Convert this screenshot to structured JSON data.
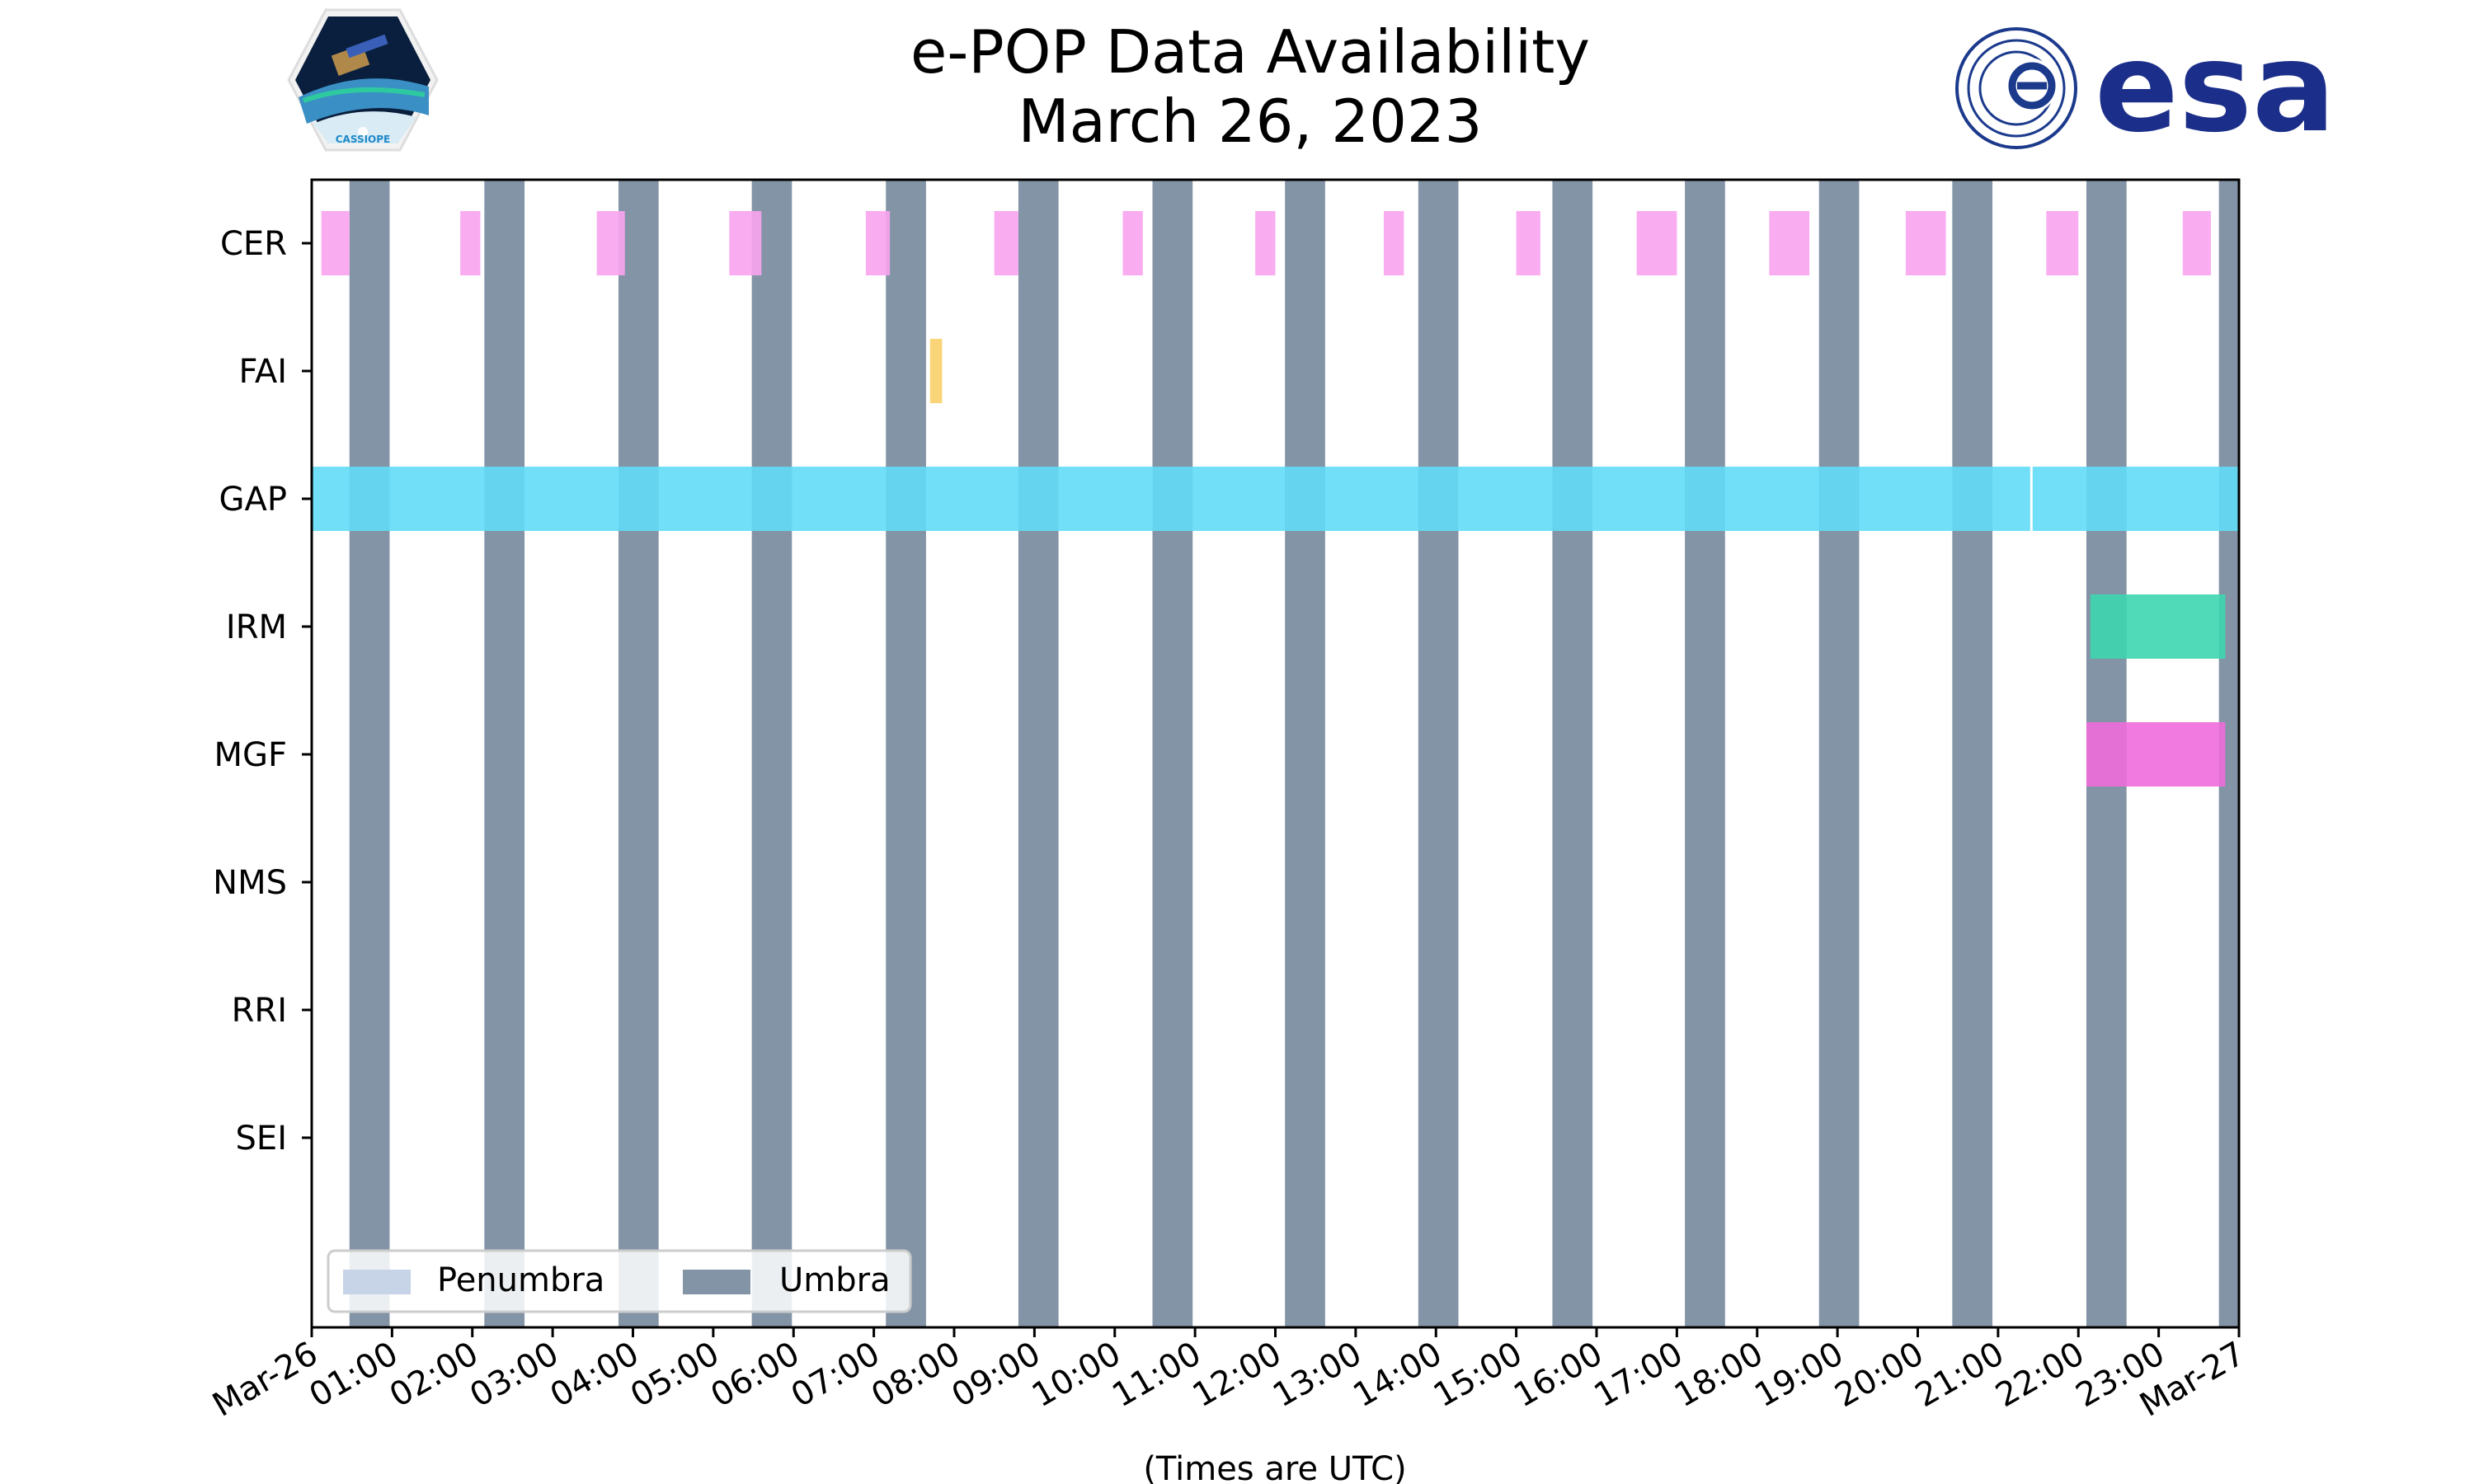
{
  "chart_data": {
    "type": "timeline",
    "title": "e-POP Data Availability",
    "subtitle": "March 26, 2023",
    "xlabel": "(Times are UTC)",
    "xlim_hours": [
      0,
      24
    ],
    "x_tick_labels": [
      "Mar-26",
      "01:00",
      "02:00",
      "03:00",
      "04:00",
      "05:00",
      "06:00",
      "07:00",
      "08:00",
      "09:00",
      "10:00",
      "11:00",
      "12:00",
      "13:00",
      "14:00",
      "15:00",
      "16:00",
      "17:00",
      "18:00",
      "19:00",
      "20:00",
      "21:00",
      "22:00",
      "23:00",
      "Mar-27"
    ],
    "instruments": [
      "CER",
      "FAI",
      "GAP",
      "IRM",
      "MGF",
      "NMS",
      "RRI",
      "SEI"
    ],
    "series": [
      {
        "name": "CER",
        "color": "#f9a3f0",
        "intervals": [
          [
            0.12,
            0.47
          ],
          [
            1.85,
            2.1
          ],
          [
            3.55,
            3.9
          ],
          [
            5.2,
            5.6
          ],
          [
            6.9,
            7.2
          ],
          [
            8.5,
            8.8
          ],
          [
            10.1,
            10.35
          ],
          [
            11.75,
            12.0
          ],
          [
            13.35,
            13.6
          ],
          [
            15.0,
            15.3
          ],
          [
            16.5,
            17.0
          ],
          [
            18.15,
            18.65
          ],
          [
            19.85,
            20.35
          ],
          [
            21.6,
            22.0
          ],
          [
            23.3,
            23.65
          ]
        ]
      },
      {
        "name": "FAI",
        "color": "#f9cf6a",
        "intervals": [
          [
            7.7,
            7.85
          ]
        ]
      },
      {
        "name": "GAP",
        "color": "#62dcf7",
        "intervals": [
          [
            0,
            21.4
          ],
          [
            21.43,
            24
          ]
        ]
      },
      {
        "name": "IRM",
        "color": "#3dd6b0",
        "intervals": [
          [
            22.15,
            23.83
          ]
        ]
      },
      {
        "name": "MGF",
        "color": "#ee6cdb",
        "intervals": [
          [
            22.1,
            23.83
          ]
        ]
      },
      {
        "name": "NMS",
        "color": "#cccccc",
        "intervals": []
      },
      {
        "name": "RRI",
        "color": "#cccccc",
        "intervals": []
      },
      {
        "name": "SEI",
        "color": "#cccccc",
        "intervals": []
      }
    ],
    "umbra_intervals": [
      [
        0.47,
        0.97
      ],
      [
        2.15,
        2.65
      ],
      [
        3.82,
        4.32
      ],
      [
        5.48,
        5.98
      ],
      [
        7.15,
        7.65
      ],
      [
        8.8,
        9.3
      ],
      [
        10.47,
        10.97
      ],
      [
        12.12,
        12.62
      ],
      [
        13.78,
        14.28
      ],
      [
        15.45,
        15.95
      ],
      [
        17.1,
        17.6
      ],
      [
        18.77,
        19.27
      ],
      [
        20.43,
        20.93
      ],
      [
        22.1,
        22.6
      ],
      [
        23.75,
        24.0
      ]
    ],
    "legend": [
      {
        "label": "Penumbra",
        "color": "#c7d3e6"
      },
      {
        "label": "Umbra",
        "color": "#8394a6"
      }
    ],
    "legend_position": "lower-left"
  },
  "logos": {
    "left_caption": "CASSIOPE",
    "right_text": "esa"
  }
}
